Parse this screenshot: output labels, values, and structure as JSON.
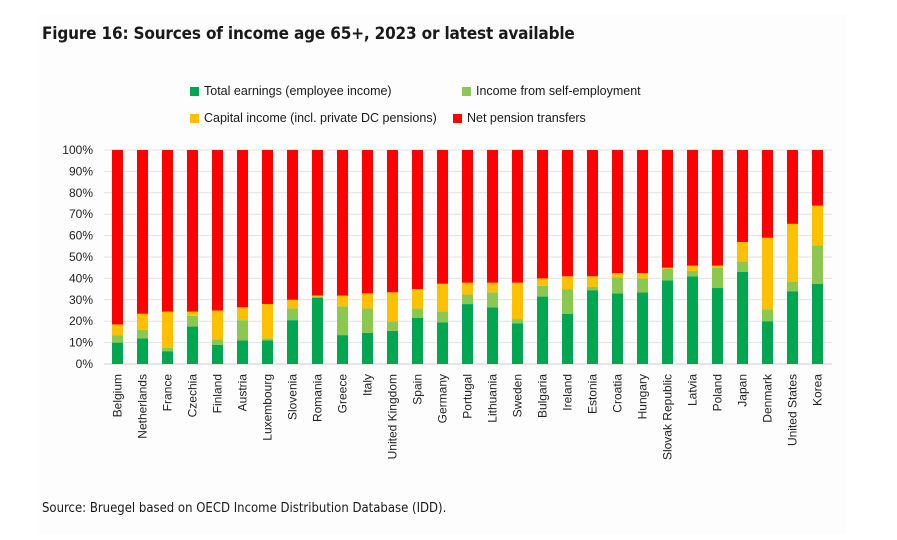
{
  "figure": {
    "title": "Figure 16: Sources of income age 65+, 2023 or latest available",
    "source": "Source: Bruegel based on OECD Income Distribution Database (IDD)."
  },
  "legend": [
    {
      "label": "Total earnings (employee income)",
      "color": "#00a650"
    },
    {
      "label": "Income from self-employment",
      "color": "#8cc850"
    },
    {
      "label": "Capital income (incl. private DC pensions)",
      "color": "#ffc000"
    },
    {
      "label": "Net pension transfers",
      "color": "#ff0000"
    }
  ],
  "chart_data": {
    "type": "bar",
    "stacked": true,
    "title": "Figure 16: Sources of income age 65+, 2023 or latest available",
    "xlabel": "",
    "ylabel": "",
    "ylim": [
      0,
      100
    ],
    "yticks": [
      "0%",
      "10%",
      "20%",
      "30%",
      "40%",
      "50%",
      "60%",
      "70%",
      "80%",
      "90%",
      "100%"
    ],
    "grid": true,
    "legend_position": "top",
    "categories": [
      "Belgium",
      "Netherlands",
      "France",
      "Czechia",
      "Finland",
      "Austria",
      "Luxembourg",
      "Slovenia",
      "Romania",
      "Greece",
      "Italy",
      "United Kingdom",
      "Spain",
      "Germany",
      "Portugal",
      "Lithuania",
      "Sweden",
      "Bulgaria",
      "Ireland",
      "Estonia",
      "Croatia",
      "Hungary",
      "Slovak Republic",
      "Latvia",
      "Poland",
      "Japan",
      "Denmark",
      "United States",
      "Korea"
    ],
    "series": [
      {
        "name": "Total earnings (employee income)",
        "color": "#00a650",
        "values": [
          10,
          12,
          6,
          17.5,
          9,
          11,
          11,
          20.5,
          31,
          13.5,
          14.5,
          15.5,
          21.5,
          19.5,
          28,
          26.5,
          19,
          31.5,
          23.5,
          34.5,
          33,
          33.5,
          39,
          41,
          35.5,
          43,
          20,
          34,
          37.5
        ]
      },
      {
        "name": "Income from self-employment",
        "color": "#8cc850",
        "values": [
          3.5,
          4,
          1.5,
          5,
          2.5,
          9.5,
          1,
          5.5,
          0.5,
          13.5,
          11.5,
          4.5,
          4.5,
          5,
          4.5,
          7,
          2,
          5,
          11.5,
          1.5,
          7.5,
          6.5,
          5.5,
          2.5,
          9.5,
          5,
          5.5,
          4.5,
          18
        ]
      },
      {
        "name": "Capital income (incl. private DC pensions)",
        "color": "#ffc000",
        "values": [
          5,
          7.5,
          17,
          2,
          13.5,
          6,
          16,
          4,
          0.5,
          5,
          7,
          13.5,
          9,
          13,
          5.5,
          4.5,
          17,
          3.5,
          6,
          5,
          2,
          2.5,
          0.5,
          2.5,
          1,
          9,
          33.5,
          27,
          18.5
        ]
      },
      {
        "name": "Net pension transfers",
        "color": "#ff0000",
        "values": [
          81.5,
          76.5,
          75.5,
          75.5,
          75,
          73.5,
          72,
          70,
          68,
          68,
          67,
          66.5,
          65,
          62.5,
          62,
          62,
          62,
          60,
          59,
          59,
          57.5,
          57.5,
          55,
          54,
          54,
          43,
          41,
          34.5,
          26
        ]
      }
    ]
  }
}
